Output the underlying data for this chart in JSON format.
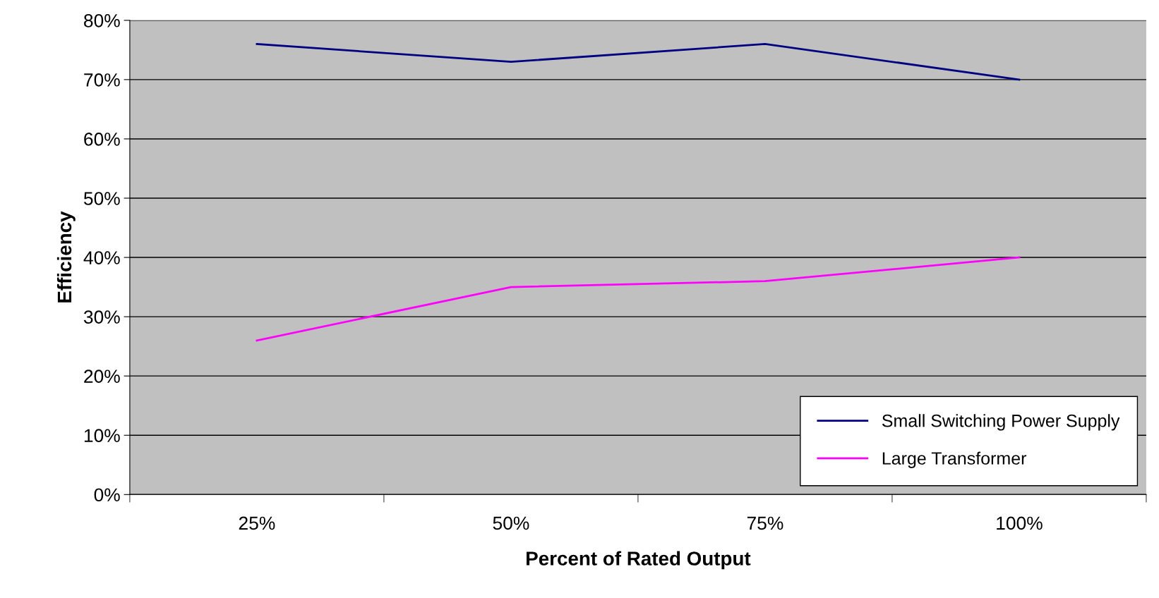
{
  "chart_data": {
    "type": "line",
    "xlabel": "Percent of Rated Output",
    "ylabel": "Efficiency",
    "categories": [
      "25%",
      "50%",
      "75%",
      "100%"
    ],
    "series": [
      {
        "name": "Small Switching Power Supply",
        "color": "#000080",
        "values": [
          76,
          73,
          76,
          70
        ]
      },
      {
        "name": "Large Transformer",
        "color": "#ff00ff",
        "values": [
          26,
          35,
          36,
          40
        ]
      }
    ],
    "ylim": [
      0,
      80
    ],
    "yticks": [
      {
        "value": 0,
        "label": "0%"
      },
      {
        "value": 10,
        "label": "10%"
      },
      {
        "value": 20,
        "label": "20%"
      },
      {
        "value": 30,
        "label": "30%"
      },
      {
        "value": 40,
        "label": "40%"
      },
      {
        "value": 50,
        "label": "50%"
      },
      {
        "value": 60,
        "label": "60%"
      },
      {
        "value": 70,
        "label": "70%"
      },
      {
        "value": 80,
        "label": "80%"
      }
    ],
    "grid": "y",
    "legend": "bottom right",
    "marker": "none",
    "line_style": "solid"
  }
}
